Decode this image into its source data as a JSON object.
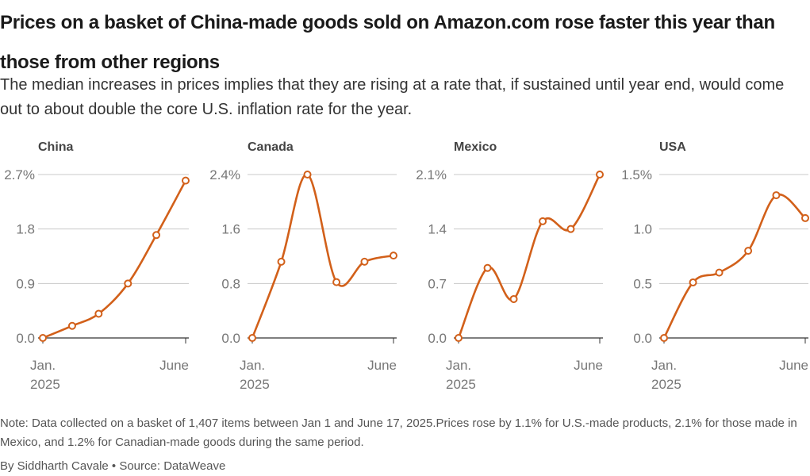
{
  "header": {
    "title": "Prices on a basket of China-made goods sold on Amazon.com rose faster this year than those from other regions",
    "subtitle": "The median increases in prices implies that they are rising at a rate that, if sustained until year end, would come out to about double the core U.S. inflation rate for the year."
  },
  "footer": {
    "note": "Note: Data collected on a basket of 1,407 items between Jan 1 and June 17, 2025.Prices rose by 1.1% for U.S.-made products, 2.1% for those made in Mexico, and 1.2% for Canadian-made goods during the same period.",
    "credit": "By Siddharth Cavale • Source: DataWeave"
  },
  "colors": {
    "line": "#d2601a",
    "grid": "#c8c8c8",
    "baseline": "#333333",
    "tick_text": "#777777",
    "panel_title": "#444444"
  },
  "chart_data": [
    {
      "type": "line",
      "title": "China",
      "x": [
        "2025-01-01",
        "2025-02-01",
        "2025-03-01",
        "2025-04-01",
        "2025-05-01",
        "2025-06-01"
      ],
      "y": [
        0.0,
        0.2,
        0.4,
        0.9,
        1.7,
        2.6
      ],
      "ylim": [
        0,
        2.7
      ],
      "yticks": [
        "0.0",
        "0.9",
        "1.8",
        "2.7%"
      ],
      "xticks": [
        {
          "line1": "Jan.",
          "line2": "2025"
        },
        {
          "line1": "June",
          "line2": ""
        }
      ],
      "grid": true
    },
    {
      "type": "line",
      "title": "Canada",
      "x": [
        "2025-01-01",
        "2025-02-01",
        "2025-03-01",
        "2025-04-01",
        "2025-05-01",
        "2025-06-01"
      ],
      "y": [
        0.0,
        1.12,
        2.4,
        0.82,
        1.12,
        1.21
      ],
      "ylim": [
        0,
        2.4
      ],
      "yticks": [
        "0.0",
        "0.8",
        "1.6",
        "2.4%"
      ],
      "xticks": [
        {
          "line1": "Jan.",
          "line2": "2025"
        },
        {
          "line1": "June",
          "line2": ""
        }
      ],
      "grid": true
    },
    {
      "type": "line",
      "title": "Mexico",
      "x": [
        "2025-01-01",
        "2025-02-01",
        "2025-03-01",
        "2025-04-01",
        "2025-05-01",
        "2025-06-01"
      ],
      "y": [
        0.0,
        0.9,
        0.5,
        1.5,
        1.4,
        2.1
      ],
      "ylim": [
        0,
        2.1
      ],
      "yticks": [
        "0.0",
        "0.7",
        "1.4",
        "2.1%"
      ],
      "xticks": [
        {
          "line1": "Jan.",
          "line2": "2025"
        },
        {
          "line1": "June",
          "line2": ""
        }
      ],
      "grid": true
    },
    {
      "type": "line",
      "title": "USA",
      "x": [
        "2025-01-01",
        "2025-02-01",
        "2025-03-01",
        "2025-04-01",
        "2025-05-01",
        "2025-06-01"
      ],
      "y": [
        0.0,
        0.51,
        0.6,
        0.8,
        1.31,
        1.1
      ],
      "ylim": [
        0,
        1.5
      ],
      "yticks": [
        "0.0",
        "0.5",
        "1.0",
        "1.5%"
      ],
      "xticks": [
        {
          "line1": "Jan.",
          "line2": "2025"
        },
        {
          "line1": "June",
          "line2": ""
        }
      ],
      "grid": true
    }
  ]
}
